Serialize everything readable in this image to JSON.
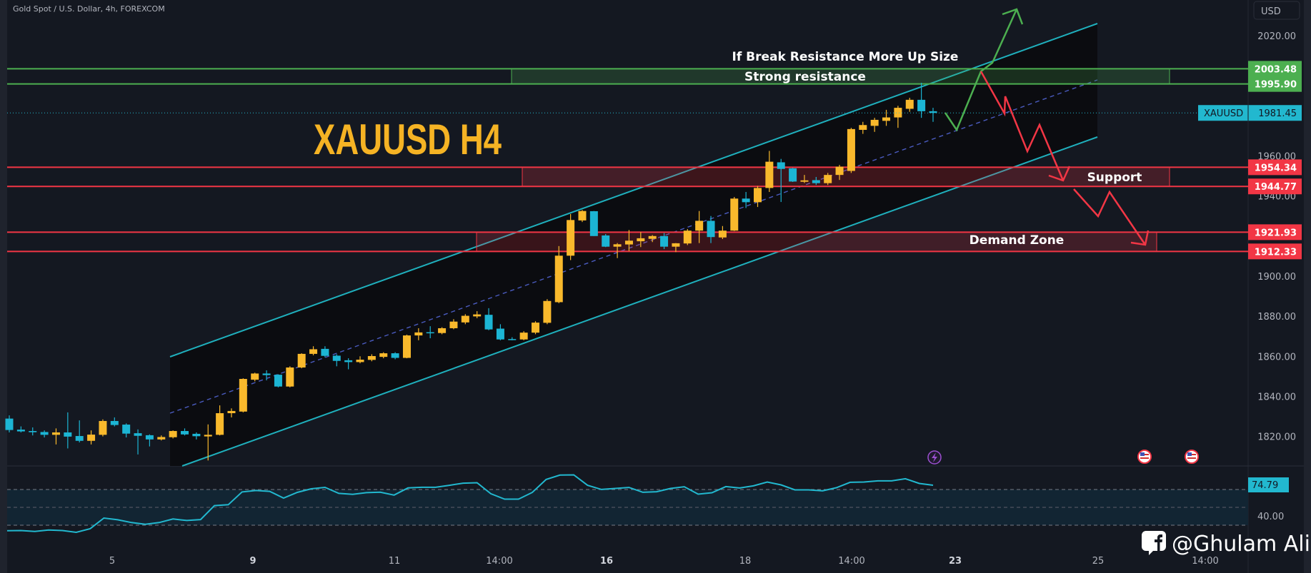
{
  "header": {
    "symbol_title": "Gold Spot / U.S. Dollar, 4h, FOREXCOM",
    "currency_button": "USD"
  },
  "annotations": {
    "chart_title": "XAUUSD H4",
    "breakout_note": "If Break Resistance More Up Size",
    "resistance_label": "Strong resistance",
    "support_label": "Support",
    "demand_label": "Demand Zone"
  },
  "levels": {
    "resistance_top": {
      "value": 2003.48,
      "label": "2003.48"
    },
    "resistance_bottom": {
      "value": 1995.9,
      "label": "1995.90"
    },
    "support_top": {
      "value": 1954.34,
      "label": "1954.34"
    },
    "support_bottom": {
      "value": 1944.77,
      "label": "1944.77"
    },
    "demand_top": {
      "value": 1921.93,
      "label": "1921.93"
    },
    "demand_bottom": {
      "value": 1912.33,
      "label": "1912.33"
    }
  },
  "last_price": {
    "symbol": "XAUUSD",
    "value": 1981.45,
    "label": "1981.45"
  },
  "rsi": {
    "last_label": "74.79",
    "axis_label": "40.00",
    "upper": 70,
    "middle": 50,
    "lower": 30
  },
  "watermark": {
    "text": "@Ghulam Ali",
    "icon": "facebook-icon"
  },
  "event_icons": [
    "lightning-icon",
    "us-flag-icon",
    "us-flag-icon"
  ],
  "colors": {
    "bull": "#f9b92c",
    "bear": "#1cb5d4",
    "resistance": "#4caf50",
    "support": "#f23645",
    "channel": "#1fb0bd",
    "rsi": "#22b8cf",
    "title": "#f5b324"
  },
  "chart_data": {
    "type": "candlestick",
    "timeframe": "4h",
    "ylim": [
      1805,
      2030
    ],
    "y_ticks": [
      "2020.00",
      "1960.00",
      "1940.00",
      "1900.00",
      "1880.00",
      "1860.00",
      "1840.00",
      "1820.00"
    ],
    "x_ticks": [
      "5",
      "9",
      "11",
      "14:00",
      "16",
      "18",
      "14:00",
      "23",
      "25",
      "14:00"
    ],
    "candles_ohlc": [
      [
        1828.9,
        1830.5,
        1822,
        1823.2
      ],
      [
        1823.4,
        1825,
        1822,
        1822.5
      ],
      [
        1822.7,
        1824.5,
        1820.5,
        1822.1
      ],
      [
        1822.2,
        1823,
        1819.5,
        1820.8
      ],
      [
        1820.8,
        1824,
        1816,
        1822.0
      ],
      [
        1822.0,
        1832,
        1814,
        1819.9
      ],
      [
        1820.2,
        1828,
        1817,
        1817.8
      ],
      [
        1817.8,
        1823,
        1816,
        1820.9
      ],
      [
        1820.8,
        1828.5,
        1820,
        1827.7
      ],
      [
        1827.7,
        1829.5,
        1825,
        1825.7
      ],
      [
        1825.9,
        1826.5,
        1819.5,
        1821.4
      ],
      [
        1821.6,
        1823.5,
        1811,
        1820.3
      ],
      [
        1820.6,
        1821,
        1815,
        1818.5
      ],
      [
        1818.5,
        1820.5,
        1818,
        1819.7
      ],
      [
        1819.6,
        1823,
        1819,
        1822.7
      ],
      [
        1822.7,
        1824,
        1820.5,
        1821.0
      ],
      [
        1821.3,
        1822,
        1818.5,
        1820.1
      ],
      [
        1820.0,
        1826,
        1808,
        1820.8
      ],
      [
        1820.8,
        1835.5,
        1820.5,
        1831.6
      ],
      [
        1831.6,
        1834,
        1829.5,
        1832.7
      ],
      [
        1832.4,
        1849,
        1832,
        1848.7
      ],
      [
        1848.3,
        1851.8,
        1847.5,
        1851.4
      ],
      [
        1851.4,
        1853,
        1848,
        1850.6
      ],
      [
        1850.8,
        1851,
        1844.5,
        1844.9
      ],
      [
        1844.9,
        1855,
        1844.5,
        1854.4
      ],
      [
        1854.4,
        1861.5,
        1854,
        1861.2
      ],
      [
        1861.2,
        1865,
        1860.5,
        1863.5
      ],
      [
        1863.7,
        1865,
        1859.5,
        1860.2
      ],
      [
        1860.3,
        1861,
        1855,
        1857.7
      ],
      [
        1858.0,
        1859,
        1853.5,
        1857.1
      ],
      [
        1857.1,
        1860,
        1856.5,
        1858.3
      ],
      [
        1858.2,
        1861,
        1857.5,
        1860.1
      ],
      [
        1859.7,
        1862,
        1859,
        1861.5
      ],
      [
        1861.5,
        1862,
        1858.5,
        1859.2
      ],
      [
        1859.2,
        1870.8,
        1859,
        1870.4
      ],
      [
        1870.4,
        1874,
        1868,
        1871.9
      ],
      [
        1872.0,
        1875,
        1869,
        1871.8
      ],
      [
        1871.6,
        1874.5,
        1871,
        1874.0
      ],
      [
        1874.0,
        1878.5,
        1873.5,
        1877.3
      ],
      [
        1876.9,
        1881,
        1876,
        1880.2
      ],
      [
        1879.9,
        1882.5,
        1879,
        1880.9
      ],
      [
        1880.7,
        1884,
        1873,
        1873.4
      ],
      [
        1873.8,
        1876,
        1868,
        1868.4
      ],
      [
        1868.6,
        1869.5,
        1868,
        1868.4
      ],
      [
        1868.4,
        1872.5,
        1868,
        1871.8
      ],
      [
        1871.8,
        1877.5,
        1871,
        1876.8
      ],
      [
        1876.7,
        1888.5,
        1876,
        1887.6
      ],
      [
        1887.0,
        1915,
        1886.5,
        1910.2
      ],
      [
        1910.2,
        1931,
        1908,
        1928.0
      ],
      [
        1927.8,
        1933,
        1927,
        1932.5
      ],
      [
        1932.4,
        1932.5,
        1920,
        1920.0
      ],
      [
        1920.3,
        1921,
        1914.5,
        1914.7
      ],
      [
        1914.7,
        1916.5,
        1909,
        1915.9
      ],
      [
        1915.8,
        1923,
        1912.5,
        1917.7
      ],
      [
        1917.4,
        1922,
        1914.5,
        1918.9
      ],
      [
        1918.6,
        1920.5,
        1917,
        1920.0
      ],
      [
        1920.0,
        1921.5,
        1913.5,
        1914.7
      ],
      [
        1914.7,
        1916.5,
        1912,
        1916.4
      ],
      [
        1916.3,
        1923.5,
        1915.5,
        1922.7
      ],
      [
        1922.7,
        1932.5,
        1916.5,
        1927.6
      ],
      [
        1927.6,
        1930,
        1916.5,
        1919.5
      ],
      [
        1919.3,
        1925,
        1918.5,
        1922.7
      ],
      [
        1922.7,
        1939.5,
        1922.5,
        1938.7
      ],
      [
        1938.7,
        1942,
        1934,
        1936.9
      ],
      [
        1936.9,
        1945,
        1934.5,
        1944.0
      ],
      [
        1944.0,
        1962.5,
        1942,
        1957.1
      ],
      [
        1956.8,
        1958.5,
        1937,
        1953.5
      ],
      [
        1953.8,
        1954,
        1947,
        1947.2
      ],
      [
        1947.1,
        1950.5,
        1946.5,
        1947.8
      ],
      [
        1947.9,
        1949.5,
        1945.5,
        1946.4
      ],
      [
        1946.4,
        1951.5,
        1945.5,
        1950.5
      ],
      [
        1950.5,
        1955.5,
        1948,
        1954.6
      ],
      [
        1952.5,
        1974,
        1951.5,
        1973.4
      ],
      [
        1973.0,
        1977,
        1971,
        1975.4
      ],
      [
        1975.0,
        1979,
        1972,
        1978.0
      ],
      [
        1977.5,
        1983,
        1975,
        1979.2
      ],
      [
        1979.2,
        1985,
        1974,
        1984.0
      ],
      [
        1983.5,
        1989,
        1982,
        1988.0
      ],
      [
        1988.0,
        1996.5,
        1979,
        1982.3
      ],
      [
        1982.3,
        1984,
        1977,
        1981.45
      ]
    ],
    "rsi_values": [
      23.8,
      24,
      23,
      24.6,
      24,
      22,
      26,
      38,
      36.1,
      33,
      31,
      33,
      37,
      35.3,
      36.3,
      51.9,
      53,
      67.3,
      68.9,
      67.9,
      60.4,
      66.8,
      70.8,
      72.4,
      65.7,
      64.6,
      66.5,
      67,
      63.8,
      71.8,
      72.5,
      72.5,
      74.7,
      77.1,
      77.6,
      65.3,
      59.2,
      59.2,
      66.7,
      81.3,
      86.2,
      86.4,
      74.7,
      70.1,
      71.2,
      72.3,
      66.9,
      67.5,
      71.2,
      73.1,
      64.8,
      66.4,
      73.3,
      71.7,
      74.1,
      78.4,
      75.2,
      69.6,
      69.6,
      68.5,
      72,
      78.1,
      78.4,
      79.7,
      79.7,
      82.1,
      76.8,
      74.79
    ]
  }
}
